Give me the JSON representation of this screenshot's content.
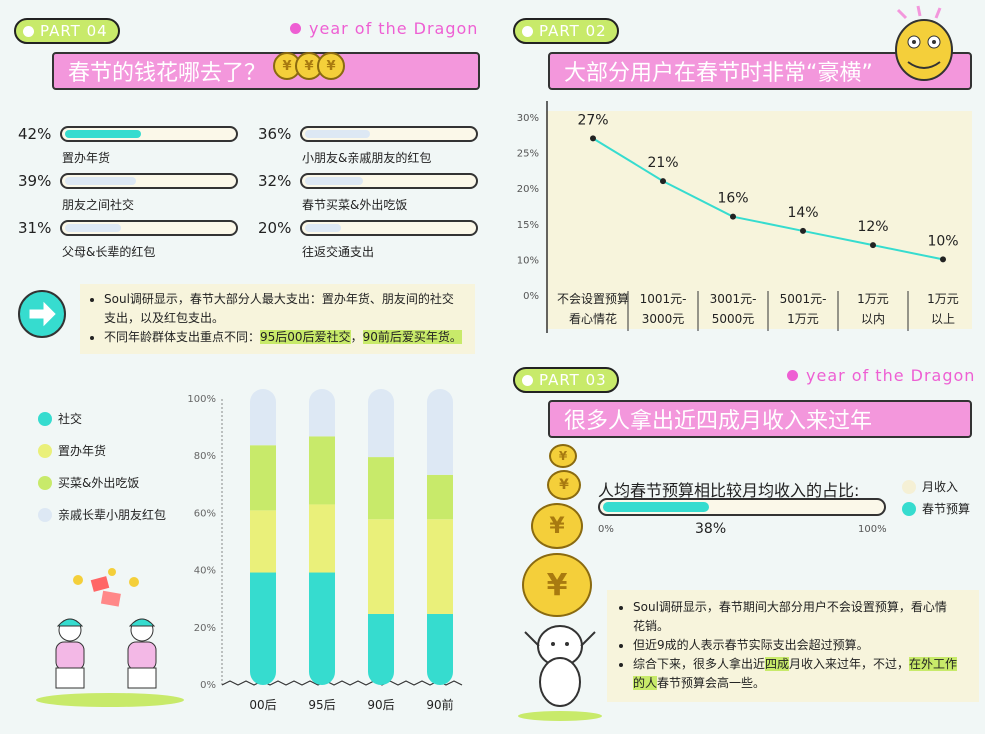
{
  "left_top": {
    "part_badge": "PART 04",
    "dragon_tag": "year of the Dragon",
    "title": "春节的钱花哪去了？",
    "stats": [
      {
        "pct": "42%",
        "label": "置办年货",
        "value": 42
      },
      {
        "pct": "39%",
        "label": "朋友之间社交",
        "value": 39
      },
      {
        "pct": "31%",
        "label": "父母&长辈的红包",
        "value": 31
      },
      {
        "pct": "36%",
        "label": "小朋友&亲戚朋友的红包",
        "value": 36
      },
      {
        "pct": "32%",
        "label": "春节买菜&外出吃饭",
        "value": 32
      },
      {
        "pct": "20%",
        "label": "往返交通支出",
        "value": 20
      }
    ],
    "note_line1a": "Soul调研显示，春节大部分人最大支出：置办年货、朋友间的社交",
    "note_line1b": "支出，以及红包支出。",
    "note_line2_pre": "不同年龄群体支出重点不同：",
    "note_line2_hl1": "95后00后爱社交",
    "note_line2_mid": "，",
    "note_line2_hl2": "90前后爱买年货。"
  },
  "right_top": {
    "part_badge": "PART 02",
    "title": "大部分用户在春节时非常“豪横”"
  },
  "right_bottom": {
    "part_badge": "PART 03",
    "dragon_tag": "year of the Dragon",
    "title": "很多人拿出近四成月收入来过年",
    "bar_caption": "人均春节预算相比较月均收入的占比:",
    "bar_value": 38,
    "bar_value_label": "38%",
    "bar_tick_start": "0%",
    "bar_tick_end": "100%",
    "legend": [
      {
        "label": "月收入",
        "color": "#f5f0d5"
      },
      {
        "label": "春节预算",
        "color": "#36dccf"
      }
    ],
    "note_line1a": "Soul调研显示，春节期间大部分用户不会设置预算，看心情",
    "note_line1b": "花销。",
    "note_line2": "但近9成的人表示春节实际支出会超过预算。",
    "note_line3_pre": "综合下来，很多人拿出近",
    "note_line3_hl1": "四成",
    "note_line3_mid": "月收入来过年，不过，",
    "note_line3_hl2": "在外工作",
    "note_line3b_hl": "的人",
    "note_line3b_post": "春节预算会高一些。"
  },
  "colors": {
    "teal": "#36dccf",
    "yellow": "#eaf07a",
    "green": "#c8ea6a",
    "lightblue": "#dde8f4",
    "pink": "#f397dc",
    "magenta": "#ee5fd3"
  },
  "chart_data": [
    {
      "type": "line",
      "categories": [
        "不会设置预算\n看心情花",
        "1001元-\n3000元",
        "3001元-\n5000元",
        "5001元-\n1万元",
        "1万元\n以内",
        "1万元\n以上"
      ],
      "series": [
        {
          "values": [
            27,
            21,
            16,
            14,
            12,
            10
          ]
        }
      ],
      "value_labels": [
        "27%",
        "21%",
        "16%",
        "14%",
        "12%",
        "10%"
      ],
      "y_ticks": [
        "0%",
        "10%",
        "15%",
        "20%",
        "25%",
        "30%"
      ],
      "ylim": [
        0,
        30
      ],
      "color": "#36dccf",
      "grid": false
    },
    {
      "type": "bar",
      "stacked": true,
      "percent": true,
      "categories": [
        "00后",
        "95后",
        "90后",
        "90前"
      ],
      "y_ticks": [
        "0%",
        "20%",
        "40%",
        "60%",
        "80%",
        "100%"
      ],
      "series": [
        {
          "name": "社交",
          "color": "#36dccf",
          "values": [
            38,
            38,
            24,
            24
          ]
        },
        {
          "name": "置办年货",
          "color": "#eaf07a",
          "values": [
            21,
            23,
            32,
            32
          ]
        },
        {
          "name": "买菜&外出吃饭",
          "color": "#c8ea6a",
          "values": [
            22,
            23,
            21,
            15
          ]
        },
        {
          "name": "亲戚长辈小朋友红包",
          "color": "#dde8f4",
          "values": [
            19,
            16,
            23,
            29
          ]
        }
      ],
      "legend_position": "left"
    }
  ]
}
